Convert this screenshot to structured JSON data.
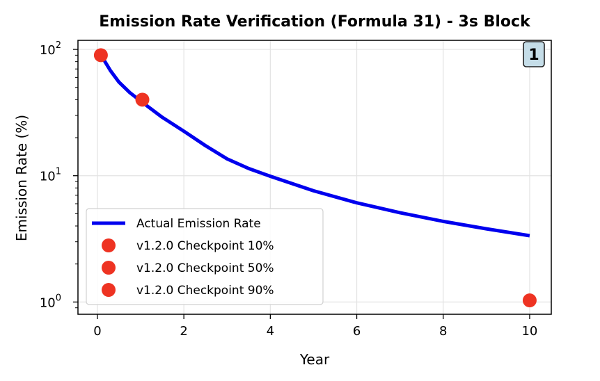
{
  "chart_data": {
    "type": "line",
    "title": "Emission Rate Verification (Formula 31) - 3s Block",
    "xlabel": "Year",
    "ylabel": "Emission Rate (%)",
    "xlim": [
      -0.45,
      10.5
    ],
    "ylim": [
      0.8,
      118
    ],
    "yscale": "log",
    "grid": true,
    "legend_position": "lower-left",
    "x_ticks": [
      0,
      2,
      4,
      6,
      8,
      10
    ],
    "x_tick_labels": [
      "0",
      "2",
      "4",
      "6",
      "8",
      "10"
    ],
    "y_ticks": [
      1,
      10,
      100
    ],
    "y_tick_bases": [
      "10",
      "10",
      "10"
    ],
    "y_tick_exponents": [
      "0",
      "1",
      "2"
    ],
    "series": [
      {
        "name": "Actual Emission Rate",
        "kind": "line",
        "color": "#0000ee",
        "x": [
          0.1,
          0.3,
          0.5,
          0.75,
          1.0,
          1.5,
          2.0,
          2.5,
          3.0,
          3.5,
          4.0,
          5.0,
          6.0,
          7.0,
          8.0,
          9.0,
          10.0
        ],
        "y": [
          88,
          68,
          55,
          45.5,
          39,
          29,
          22.5,
          17.3,
          13.6,
          11.4,
          9.9,
          7.6,
          6.1,
          5.1,
          4.35,
          3.8,
          3.35
        ]
      },
      {
        "name": "v1.2.0 Checkpoint 10%",
        "kind": "marker",
        "color": "#ee3322",
        "x": [
          0.08
        ],
        "y": [
          90
        ]
      },
      {
        "name": "v1.2.0 Checkpoint 50%",
        "kind": "marker",
        "color": "#ee3322",
        "x": [
          1.04
        ],
        "y": [
          40
        ]
      },
      {
        "name": "v1.2.0 Checkpoint 90%",
        "kind": "marker",
        "color": "#ee3322",
        "x": [
          10.0
        ],
        "y": [
          1.03
        ]
      }
    ],
    "annotation": {
      "text": "1",
      "position": "top-right",
      "background": "#c5dde8"
    }
  }
}
